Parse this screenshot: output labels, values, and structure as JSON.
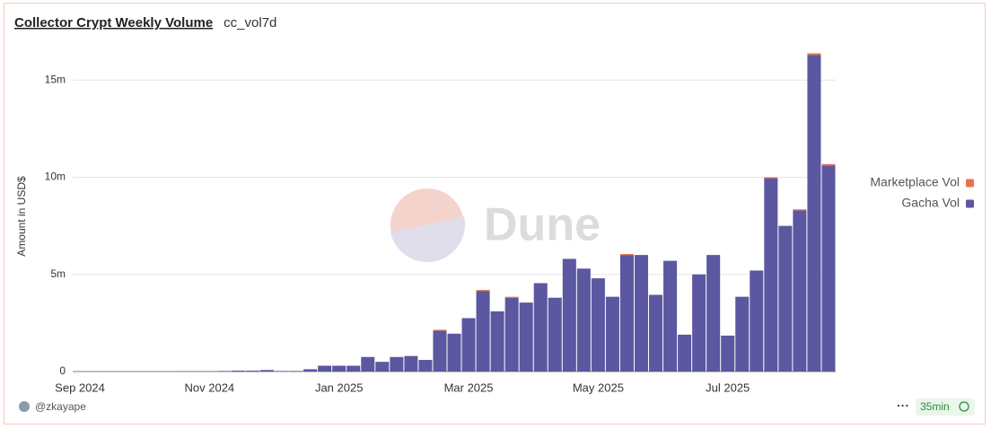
{
  "header": {
    "title": "Collector Crypt Weekly Volume",
    "subtitle": "cc_vol7d"
  },
  "chart_data": {
    "type": "bar",
    "stacked": true,
    "watermark": "Dune",
    "y_label": "Amount in USD$",
    "categories": [
      "Sep 2024",
      null,
      null,
      null,
      null,
      null,
      null,
      null,
      null,
      "Nov 2024",
      null,
      null,
      null,
      null,
      null,
      null,
      null,
      null,
      "Jan 2025",
      null,
      null,
      null,
      null,
      null,
      null,
      null,
      null,
      "Mar 2025",
      null,
      null,
      null,
      null,
      null,
      null,
      null,
      null,
      "May 2025",
      null,
      null,
      null,
      null,
      null,
      null,
      null,
      null,
      "Jul 2025",
      null,
      null,
      null,
      null,
      null,
      null,
      null
    ],
    "series": [
      {
        "name": "Marketplace Vol",
        "color": "#e8734a",
        "values": [
          0,
          0,
          0,
          0,
          0,
          0,
          0,
          0,
          0,
          0,
          0,
          0,
          0,
          0,
          0,
          0,
          0,
          0,
          0,
          0,
          0,
          0,
          0,
          0,
          0,
          50000,
          0,
          0,
          50000,
          0,
          50000,
          0,
          0,
          0,
          0,
          0,
          0,
          0,
          50000,
          0,
          0,
          0,
          0,
          0,
          0,
          0,
          0,
          0,
          50000,
          0,
          50000,
          80000,
          80000
        ]
      },
      {
        "name": "Gacha Vol",
        "color": "#5b57a0",
        "values": [
          10000,
          10000,
          10000,
          10000,
          10000,
          10000,
          10000,
          20000,
          20000,
          20000,
          30000,
          50000,
          50000,
          80000,
          30000,
          30000,
          120000,
          300000,
          300000,
          300000,
          750000,
          500000,
          750000,
          800000,
          600000,
          2100000,
          1950000,
          2750000,
          4150000,
          3100000,
          3800000,
          3550000,
          4550000,
          3800000,
          5800000,
          5300000,
          4800000,
          3850000,
          6000000,
          6000000,
          3950000,
          5700000,
          1900000,
          5000000,
          6000000,
          1850000,
          3850000,
          5200000,
          9950000,
          7500000,
          8300000,
          16300000,
          10600000
        ]
      }
    ],
    "ylim": [
      0,
      17000000
    ],
    "yticks": [
      0,
      {
        "value": 5000000,
        "label": "5m"
      },
      {
        "value": 10000000,
        "label": "10m"
      },
      {
        "value": 15000000,
        "label": "15m"
      }
    ],
    "grid": true,
    "legend": "right"
  },
  "footer": {
    "author": "@zkayape",
    "age": "35min"
  }
}
